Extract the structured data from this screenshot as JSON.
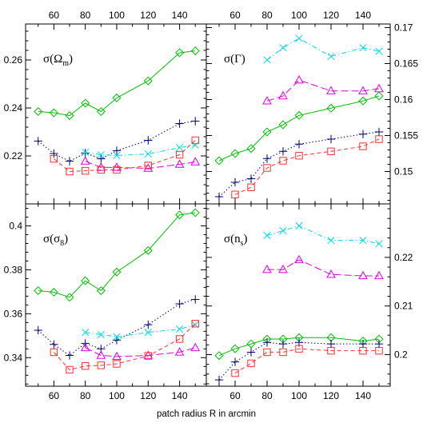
{
  "chart_data": {
    "type": "line",
    "xlabel": "patch radius R in arcmin",
    "x_axis": {
      "range": [
        42,
        157
      ],
      "ticks": [
        60,
        80,
        100,
        120,
        140
      ]
    },
    "series_styles": {
      "green": {
        "color": "#00c000",
        "marker": "diamond",
        "dash": "none"
      },
      "black": {
        "color": "#000080",
        "marker": "plus",
        "dash": "dotted"
      },
      "cyan": {
        "color": "#00d8e8",
        "marker": "cross",
        "dash": "dashdot"
      },
      "magenta": {
        "color": "#e000e0",
        "marker": "triangle",
        "dash": "longdash"
      },
      "red": {
        "color": "#ff3030",
        "marker": "square",
        "dash": "dashed"
      }
    },
    "panels": [
      {
        "id": "omega_m",
        "label": "σ(Ω",
        "label_sub": "m",
        "label_close": ")",
        "y_axis": {
          "side": "left",
          "range": [
            0.2,
            0.275
          ],
          "ticks": [
            0.22,
            0.24,
            0.26
          ],
          "tick_labels": [
            "0.22",
            "0.24",
            "0.26"
          ]
        },
        "series": [
          {
            "style": "green",
            "x": [
              50,
              60,
              70,
              80,
              90,
              100,
              120,
              140,
              150
            ],
            "y": [
              0.2385,
              0.238,
              0.2368,
              0.242,
              0.2385,
              0.2442,
              0.2513,
              0.263,
              0.2638
            ]
          },
          {
            "style": "black",
            "x": [
              50,
              60,
              70,
              80,
              90,
              100,
              120,
              140,
              150
            ],
            "y": [
              0.2262,
              0.221,
              0.2178,
              0.2212,
              0.2188,
              0.2222,
              0.2265,
              0.2335,
              0.2345
            ]
          },
          {
            "style": "cyan",
            "x": [
              80,
              90,
              100,
              120,
              140,
              150
            ],
            "y": [
              0.2215,
              0.2205,
              0.2202,
              0.2208,
              0.2235,
              0.2245
            ]
          },
          {
            "style": "magenta",
            "x": [
              80,
              90,
              100,
              120,
              140,
              150
            ],
            "y": [
              0.2178,
              0.2152,
              0.2152,
              0.2148,
              0.2165,
              0.2175
            ]
          },
          {
            "style": "red",
            "x": [
              60,
              70,
              80,
              90,
              100,
              120,
              140,
              150
            ],
            "y": [
              0.2188,
              0.2135,
              0.2138,
              0.2142,
              0.2142,
              0.216,
              0.2205,
              0.2265
            ]
          }
        ]
      },
      {
        "id": "gamma",
        "label": "σ(Γ",
        "label_sub": "",
        "label_close": ")",
        "y_axis": {
          "side": "right",
          "range": [
            0.1455,
            0.1705
          ],
          "ticks": [
            0.15,
            0.155,
            0.16,
            0.165,
            0.17
          ],
          "tick_labels": [
            "0.15",
            "0.155",
            "0.16",
            "0.165",
            "0.17"
          ]
        },
        "series": [
          {
            "style": "cyan",
            "x": [
              80,
              90,
              100,
              120,
              140,
              150
            ],
            "y": [
              0.1655,
              0.1672,
              0.1685,
              0.166,
              0.1672,
              0.1667
            ]
          },
          {
            "style": "magenta",
            "x": [
              80,
              90,
              100,
              120,
              140,
              150
            ],
            "y": [
              0.1598,
              0.1605,
              0.1627,
              0.1612,
              0.1612,
              0.1615
            ]
          },
          {
            "style": "green",
            "x": [
              50,
              60,
              70,
              80,
              90,
              100,
              120,
              140,
              150
            ],
            "y": [
              0.1515,
              0.1525,
              0.1532,
              0.1555,
              0.1565,
              0.1578,
              0.1588,
              0.1598,
              0.1605
            ]
          },
          {
            "style": "black",
            "x": [
              50,
              60,
              70,
              80,
              90,
              100,
              120,
              140,
              150
            ],
            "y": [
              0.1465,
              0.1485,
              0.149,
              0.1518,
              0.1528,
              0.1538,
              0.1545,
              0.1552,
              0.1555
            ]
          },
          {
            "style": "red",
            "x": [
              60,
              70,
              80,
              90,
              100,
              120,
              140,
              150
            ],
            "y": [
              0.1468,
              0.1478,
              0.1505,
              0.1515,
              0.1522,
              0.1528,
              0.1535,
              0.1545
            ]
          }
        ]
      },
      {
        "id": "sigma_8",
        "label": "σ(σ",
        "label_sub": "8",
        "label_close": ")",
        "y_axis": {
          "side": "left",
          "range": [
            0.327,
            0.41
          ],
          "ticks": [
            0.34,
            0.36,
            0.38,
            0.4
          ],
          "tick_labels": [
            "0.34",
            "0.36",
            "0.38",
            "0.4"
          ]
        },
        "series": [
          {
            "style": "green",
            "x": [
              50,
              60,
              70,
              80,
              90,
              100,
              120,
              140,
              150
            ],
            "y": [
              0.3705,
              0.3698,
              0.3675,
              0.375,
              0.3705,
              0.379,
              0.3888,
              0.405,
              0.406
            ]
          },
          {
            "style": "black",
            "x": [
              50,
              60,
              70,
              80,
              90,
              100,
              120,
              140,
              150
            ],
            "y": [
              0.3525,
              0.346,
              0.341,
              0.3465,
              0.344,
              0.348,
              0.355,
              0.3645,
              0.3665
            ]
          },
          {
            "style": "cyan",
            "x": [
              80,
              90,
              100,
              120,
              140,
              150
            ],
            "y": [
              0.3515,
              0.3505,
              0.3495,
              0.3515,
              0.353,
              0.355
            ]
          },
          {
            "style": "magenta",
            "x": [
              80,
              90,
              100,
              120,
              140,
              150
            ],
            "y": [
              0.3445,
              0.341,
              0.3405,
              0.341,
              0.3425,
              0.3445
            ]
          },
          {
            "style": "red",
            "x": [
              60,
              70,
              80,
              90,
              100,
              120,
              140,
              150
            ],
            "y": [
              0.3425,
              0.3345,
              0.3362,
              0.3365,
              0.3372,
              0.3408,
              0.3485,
              0.3555
            ]
          }
        ]
      },
      {
        "id": "n_s",
        "label": "σ(n",
        "label_sub": "s",
        "label_close": ")",
        "y_axis": {
          "side": "right",
          "range": [
            0.1935,
            0.231
          ],
          "ticks": [
            0.2,
            0.21,
            0.22
          ],
          "tick_labels": [
            "0.2",
            "0.21",
            "0.22"
          ]
        },
        "series": [
          {
            "style": "cyan",
            "x": [
              80,
              90,
              100,
              120,
              140,
              150
            ],
            "y": [
              0.2245,
              0.2255,
              0.2265,
              0.2235,
              0.2235,
              0.2228
            ]
          },
          {
            "style": "magenta",
            "x": [
              80,
              90,
              100,
              120,
              140,
              150
            ],
            "y": [
              0.2175,
              0.2175,
              0.2195,
              0.2165,
              0.2162,
              0.2162
            ]
          },
          {
            "style": "green",
            "x": [
              50,
              60,
              70,
              80,
              90,
              100,
              120,
              140,
              150
            ],
            "y": [
              0.1998,
              0.2012,
              0.2022,
              0.2032,
              0.2032,
              0.2035,
              0.2035,
              0.2028,
              0.2032
            ]
          },
          {
            "style": "black",
            "x": [
              50,
              60,
              70,
              80,
              90,
              100,
              120,
              140,
              150
            ],
            "y": [
              0.1948,
              0.1985,
              0.2005,
              0.2025,
              0.2022,
              0.2025,
              0.2022,
              0.2022,
              0.2022
            ]
          },
          {
            "style": "red",
            "x": [
              60,
              70,
              80,
              90,
              100,
              120,
              140,
              150
            ],
            "y": [
              0.1962,
              0.1982,
              0.2005,
              0.2005,
              0.2012,
              0.2008,
              0.2008,
              0.2008
            ]
          }
        ]
      }
    ]
  }
}
